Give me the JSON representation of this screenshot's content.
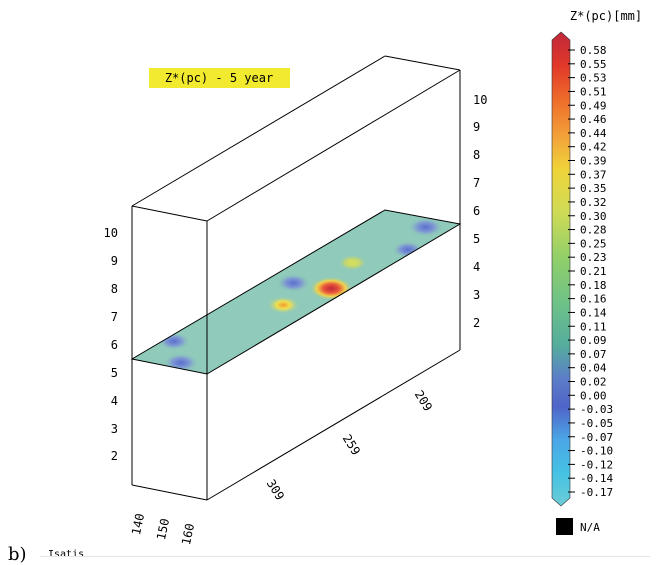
{
  "figure_label": "b)",
  "software_label": "Isatis",
  "chart_data": {
    "type": "heatmap",
    "title": "Z*(pc) - 5 year",
    "colorbar": {
      "title": "Z*(pc)[mm]",
      "ticks": [
        "0.58",
        "0.55",
        "0.53",
        "0.51",
        "0.49",
        "0.46",
        "0.44",
        "0.42",
        "0.39",
        "0.37",
        "0.35",
        "0.32",
        "0.30",
        "0.28",
        "0.25",
        "0.23",
        "0.21",
        "0.18",
        "0.16",
        "0.14",
        "0.11",
        "0.09",
        "0.07",
        "0.04",
        "0.02",
        "0.00",
        "-0.03",
        "-0.05",
        "-0.07",
        "-0.10",
        "-0.12",
        "-0.14",
        "-0.17"
      ],
      "na_label": "N/A",
      "range": [
        -0.17,
        0.58
      ]
    },
    "axes": {
      "left_vertical_ticks": [
        "10",
        "9",
        "8",
        "7",
        "6",
        "5",
        "4",
        "3",
        "2"
      ],
      "right_vertical_ticks": [
        "10",
        "9",
        "8",
        "7",
        "6",
        "5",
        "4",
        "3",
        "2"
      ],
      "front_ticks": [
        "140",
        "150",
        "160"
      ],
      "depth_ticks": [
        "309",
        "259",
        "209"
      ]
    },
    "slice_z": 5.5,
    "background_value": 0.16,
    "hotspots": [
      {
        "x": 0.03,
        "y": 0.55,
        "value": -0.1
      },
      {
        "x": 0.13,
        "y": 0.12,
        "value": -0.05
      },
      {
        "x": 0.42,
        "y": 0.6,
        "value": 0.39
      },
      {
        "x": 0.54,
        "y": 0.33,
        "value": -0.07
      },
      {
        "x": 0.55,
        "y": 0.8,
        "value": 0.58
      },
      {
        "x": 0.7,
        "y": 0.58,
        "value": 0.32
      },
      {
        "x": 0.82,
        "y": 0.91,
        "value": -0.03
      },
      {
        "x": 0.95,
        "y": 0.71,
        "value": -0.1
      }
    ],
    "grid": false
  }
}
